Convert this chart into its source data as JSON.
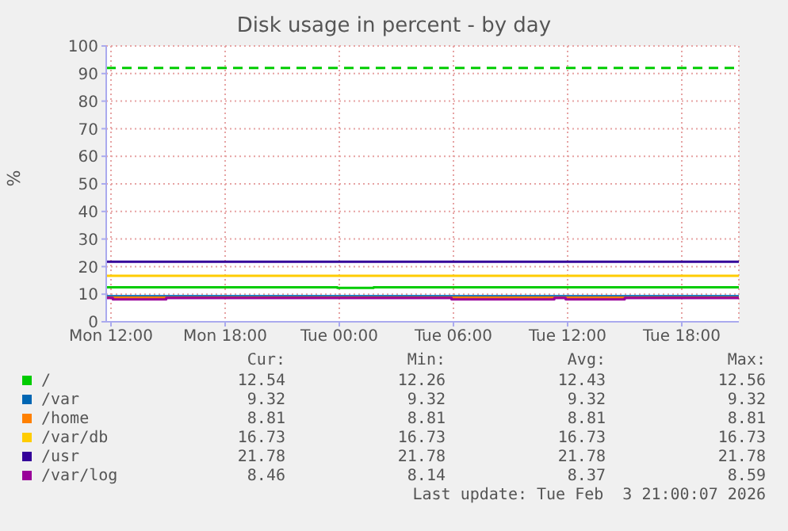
{
  "chart_data": {
    "type": "step",
    "title": "Disk usage in percent - by day",
    "ylabel": "%",
    "xlim": [
      "2026-02-02T11:45",
      "2026-02-03T21:00"
    ],
    "xticks": [
      {
        "value": "2026-02-02T12:00",
        "label": "Mon 12:00"
      },
      {
        "value": "2026-02-02T18:00",
        "label": "Mon 18:00"
      },
      {
        "value": "2026-02-03T00:00",
        "label": "Tue 00:00"
      },
      {
        "value": "2026-02-03T06:00",
        "label": "Tue 06:00"
      },
      {
        "value": "2026-02-03T12:00",
        "label": "Tue 12:00"
      },
      {
        "value": "2026-02-03T18:00",
        "label": "Tue 18:00"
      }
    ],
    "ylim": [
      0,
      100
    ],
    "yticks": [
      0,
      10,
      20,
      30,
      40,
      50,
      60,
      70,
      80,
      90,
      100
    ],
    "grid": true,
    "legend": "bottom",
    "line_style": "solid",
    "ref_lines": [
      {
        "axis": "y",
        "value": 92,
        "color": "#00cc00",
        "line_style": "dashed"
      }
    ],
    "series": [
      {
        "name": "/",
        "color": "#00cc00",
        "x": [
          "2026-02-02T11:45",
          "2026-02-02T23:54",
          "2026-02-03T01:48",
          "2026-02-03T21:00"
        ],
        "values": [
          12.5,
          12.3,
          12.5,
          12.5
        ]
      },
      {
        "name": "/var",
        "color": "#0066b3",
        "x": [
          "2026-02-02T11:45",
          "2026-02-03T21:00"
        ],
        "values": [
          9.3,
          9.3
        ]
      },
      {
        "name": "/home",
        "color": "#ff8000",
        "x": [
          "2026-02-02T11:45",
          "2026-02-03T21:00"
        ],
        "values": [
          8.8,
          8.8
        ]
      },
      {
        "name": "/var/db",
        "color": "#ffcc00",
        "x": [
          "2026-02-02T11:45",
          "2026-02-03T21:00"
        ],
        "values": [
          16.7,
          16.7
        ]
      },
      {
        "name": "/usr",
        "color": "#330099",
        "x": [
          "2026-02-02T11:45",
          "2026-02-03T21:00"
        ],
        "values": [
          21.8,
          21.8
        ]
      },
      {
        "name": "/var/log",
        "color": "#990099",
        "x": [
          "2026-02-02T11:45",
          "2026-02-02T12:06",
          "2026-02-02T14:54",
          "2026-02-03T05:54",
          "2026-02-03T11:18",
          "2026-02-03T11:54",
          "2026-02-03T15:00",
          "2026-02-03T21:00"
        ],
        "values": [
          8.6,
          8.1,
          8.6,
          8.1,
          8.6,
          8.1,
          8.6,
          8.6
        ]
      }
    ],
    "annotations": [
      "Cur:",
      "Min:",
      "Avg:",
      "Max:",
      "12.54",
      "12.26",
      "12.43",
      "12.56",
      "9.32",
      "9.32",
      "9.32",
      "9.32",
      "8.81",
      "8.81",
      "8.81",
      "8.81",
      "16.73",
      "16.73",
      "16.73",
      "16.73",
      "21.78",
      "21.78",
      "21.78",
      "21.78",
      "8.46",
      "8.14",
      "8.37",
      "8.59",
      "Last update: Tue Feb  3 21:00:07 2026"
    ]
  }
}
